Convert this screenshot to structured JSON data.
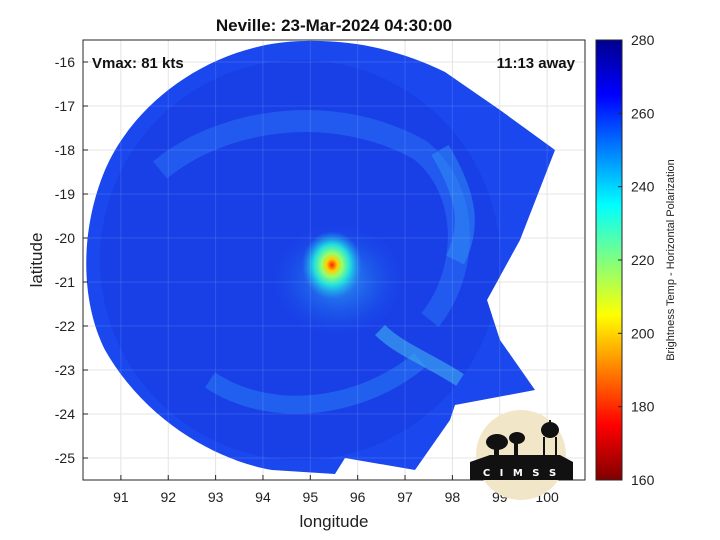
{
  "chart_data": {
    "type": "heatmap",
    "title": "Neville: 23-Mar-2024 04:30:00",
    "xlabel": "longitude",
    "ylabel": "latitude",
    "xlim": [
      90.2,
      100.8
    ],
    "ylim": [
      -25.5,
      -15.5
    ],
    "xticks": [
      91,
      92,
      93,
      94,
      95,
      96,
      97,
      98,
      99,
      100
    ],
    "yticks": [
      -16,
      -17,
      -18,
      -19,
      -20,
      -21,
      -22,
      -23,
      -24,
      -25
    ],
    "grid": true,
    "annotations": {
      "top_left": "Vmax: 81 kts",
      "top_right": "11:13 away"
    },
    "colorbar": {
      "label": "Brightness Temp - Horizontal Polarization",
      "range": [
        160,
        280
      ],
      "ticks": [
        280,
        260,
        240,
        220,
        200,
        180,
        160
      ],
      "colormap": "jet"
    },
    "storm_center": {
      "lon": 95.3,
      "lat": -20.6,
      "min_value": 195
    },
    "background_value": 265
  },
  "logo": {
    "name": "cimss-logo",
    "text": "C I M S S"
  }
}
